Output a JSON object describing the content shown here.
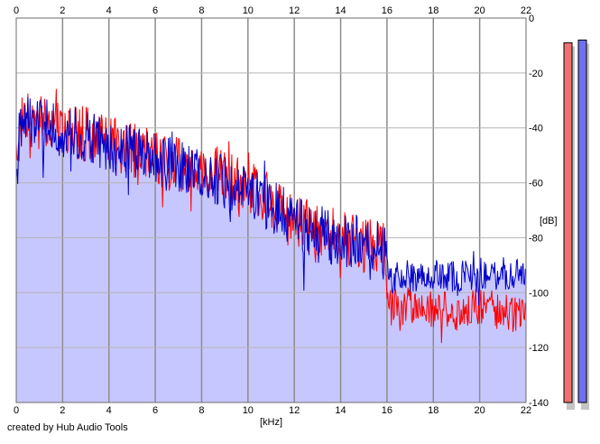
{
  "chart_data": {
    "type": "area",
    "xlabel": "[kHz]",
    "ylabel": "[dB]",
    "xlim": [
      0,
      22
    ],
    "ylim": [
      -140,
      0
    ],
    "x_ticks": [
      0,
      2,
      4,
      6,
      8,
      10,
      12,
      14,
      16,
      18,
      20,
      22
    ],
    "y_ticks": [
      0,
      -20,
      -40,
      -60,
      -80,
      -100,
      -120,
      -140
    ],
    "grid": true,
    "series": [
      {
        "channel": "red",
        "color": "#ff0000",
        "envelope": [
          [
            0,
            -50
          ],
          [
            0.3,
            -34
          ],
          [
            0.6,
            -35
          ],
          [
            1,
            -38
          ],
          [
            2,
            -40
          ],
          [
            3,
            -42
          ],
          [
            4,
            -46
          ],
          [
            5,
            -48
          ],
          [
            6,
            -51
          ],
          [
            7,
            -53
          ],
          [
            8,
            -55
          ],
          [
            9,
            -58
          ],
          [
            10,
            -62
          ],
          [
            11,
            -66
          ],
          [
            12,
            -73
          ],
          [
            13,
            -77
          ],
          [
            14,
            -80
          ],
          [
            15,
            -83
          ],
          [
            15.9,
            -84
          ],
          [
            16.05,
            -105
          ],
          [
            17,
            -105
          ],
          [
            18,
            -106
          ],
          [
            19,
            -107
          ],
          [
            20,
            -105
          ],
          [
            21,
            -107
          ],
          [
            22,
            -108
          ]
        ],
        "spread": [
          [
            0,
            10
          ],
          [
            15.9,
            10
          ],
          [
            16.0,
            7
          ],
          [
            22,
            7
          ]
        ]
      },
      {
        "channel": "blue",
        "color": "#0000cc",
        "envelope": [
          [
            0,
            -48
          ],
          [
            0.4,
            -36
          ],
          [
            1,
            -39
          ],
          [
            2,
            -41
          ],
          [
            3,
            -43
          ],
          [
            4,
            -47
          ],
          [
            5,
            -49
          ],
          [
            6,
            -52
          ],
          [
            7,
            -54
          ],
          [
            8,
            -57
          ],
          [
            9,
            -60
          ],
          [
            10,
            -64
          ],
          [
            11,
            -68
          ],
          [
            12,
            -74
          ],
          [
            13,
            -78
          ],
          [
            14,
            -81
          ],
          [
            15,
            -82
          ],
          [
            15.9,
            -83
          ],
          [
            16.05,
            -95
          ],
          [
            17,
            -94
          ],
          [
            18,
            -93
          ],
          [
            19,
            -94
          ],
          [
            20,
            -93
          ],
          [
            21,
            -93
          ],
          [
            22,
            -93
          ]
        ],
        "spread": [
          [
            0,
            10
          ],
          [
            15.9,
            10
          ],
          [
            16.0,
            6
          ],
          [
            22,
            6
          ]
        ]
      }
    ],
    "fill_color": "#c7c7ff",
    "level_meters": [
      {
        "channel": "left",
        "color": "#ee7070",
        "peak_db": -9
      },
      {
        "channel": "right",
        "color": "#7070ee",
        "peak_db": -8
      }
    ]
  },
  "footer": {
    "credit": "created by Hub Audio Tools"
  }
}
